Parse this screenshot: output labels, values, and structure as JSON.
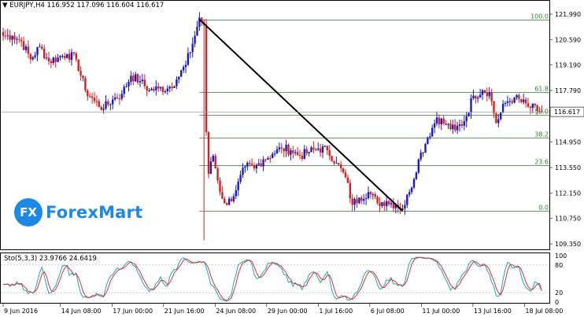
{
  "header": {
    "symbol": "EURJPY,H4",
    "ohlc": "116.952 117.096 116.604 116.617"
  },
  "price_axis": {
    "labels": [
      "121.990",
      "120.590",
      "119.190",
      "117.790",
      "116.617",
      "114.950",
      "113.550",
      "112.150",
      "110.750",
      "109.350"
    ],
    "current": "116.617"
  },
  "fib_levels": [
    {
      "label": "100.0",
      "value": 121.7
    },
    {
      "label": "61.8",
      "value": 117.72
    },
    {
      "label": "50.0",
      "value": 116.45
    },
    {
      "label": "38.2",
      "value": 115.2
    },
    {
      "label": "23.6",
      "value": 113.67
    },
    {
      "label": "0.0",
      "value": 111.16
    }
  ],
  "trendline": {
    "from_date": "23 Jun 2016",
    "to_date": "8 Jul 2016"
  },
  "oscillator": {
    "label": "Sto(5,3,3) 23.9766 24.6419",
    "axis_labels": [
      "100",
      "80",
      "20",
      "0"
    ]
  },
  "time_axis": {
    "labels": [
      "9 Jun 2016",
      "14 Jun 08:00",
      "17 Jun 00:00",
      "21 Jun 16:00",
      "24 Jun 08:00",
      "29 Jun 00:00",
      "1 Jul 16:00",
      "6 Jul 08:00",
      "11 Jul 00:00",
      "13 Jul 16:00",
      "18 Jul 08:00"
    ]
  },
  "logo": {
    "mark": "FX",
    "text": "ForexMart"
  },
  "colors": {
    "bull": "#1a1ac8",
    "bear": "#d42020",
    "fib": "#2e7d32",
    "stoch_main": "#1fa7b0",
    "stoch_signal": "#e03030"
  },
  "chart_data": {
    "type": "candlestick",
    "symbol": "EURJPY",
    "timeframe": "H4",
    "ylim": [
      109.35,
      121.99
    ],
    "keypoints": [
      [
        0,
        120.8
      ],
      [
        4,
        120.8
      ],
      [
        8,
        120.5
      ],
      [
        12,
        119.5
      ],
      [
        16,
        120.2
      ],
      [
        20,
        119.4
      ],
      [
        24,
        119.6
      ],
      [
        28,
        119.8
      ],
      [
        32,
        119.5
      ],
      [
        36,
        117.8
      ],
      [
        40,
        117.2
      ],
      [
        44,
        116.8
      ],
      [
        48,
        117.3
      ],
      [
        52,
        117.6
      ],
      [
        56,
        118.6
      ],
      [
        60,
        118.3
      ],
      [
        64,
        117.8
      ],
      [
        68,
        117.9
      ],
      [
        72,
        117.9
      ],
      [
        76,
        118.4
      ],
      [
        80,
        119.2
      ],
      [
        84,
        120.8
      ],
      [
        86,
        121.8
      ],
      [
        88,
        121.4
      ],
      [
        89,
        115.5
      ],
      [
        90,
        113.2
      ],
      [
        92,
        114.2
      ],
      [
        95,
        112.2
      ],
      [
        98,
        111.5
      ],
      [
        102,
        112.3
      ],
      [
        106,
        113.6
      ],
      [
        110,
        113.5
      ],
      [
        114,
        114.0
      ],
      [
        118,
        114.3
      ],
      [
        122,
        114.6
      ],
      [
        126,
        114.5
      ],
      [
        130,
        114.2
      ],
      [
        134,
        114.4
      ],
      [
        138,
        114.6
      ],
      [
        142,
        114.5
      ],
      [
        146,
        113.8
      ],
      [
        150,
        113.0
      ],
      [
        153,
        111.5
      ],
      [
        156,
        111.9
      ],
      [
        160,
        112.2
      ],
      [
        164,
        111.6
      ],
      [
        168,
        111.7
      ],
      [
        172,
        111.5
      ],
      [
        175,
        111.3
      ],
      [
        178,
        112.2
      ],
      [
        182,
        114.0
      ],
      [
        186,
        115.2
      ],
      [
        190,
        116.3
      ],
      [
        194,
        115.9
      ],
      [
        198,
        115.6
      ],
      [
        202,
        116.1
      ],
      [
        206,
        117.5
      ],
      [
        210,
        117.8
      ],
      [
        213,
        117.7
      ],
      [
        216,
        116.0
      ],
      [
        220,
        117.1
      ],
      [
        224,
        117.4
      ],
      [
        230,
        116.9
      ],
      [
        236,
        116.617
      ]
    ],
    "stochastic": {
      "params": "5,3,3",
      "main_last": 23.9766,
      "signal_last": 24.6419,
      "ylim": [
        0,
        100
      ],
      "levels": [
        20,
        80
      ]
    }
  }
}
